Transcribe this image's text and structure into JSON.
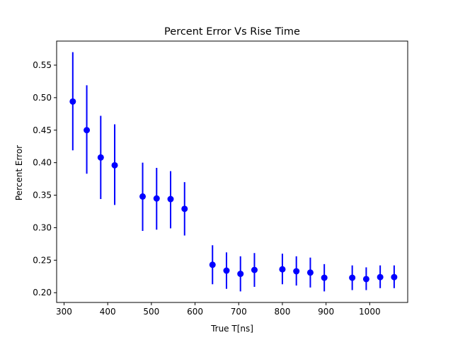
{
  "chart_data": {
    "type": "scatter",
    "title": "Percent Error Vs Rise Time",
    "xlabel": "True T[ns]",
    "ylabel": "Percent Error",
    "xlim": [
      283,
      1087
    ],
    "ylim": [
      0.185,
      0.587
    ],
    "xticks": [
      300,
      400,
      500,
      600,
      700,
      800,
      900,
      1000
    ],
    "yticks": [
      0.2,
      0.25,
      0.3,
      0.35,
      0.4,
      0.45,
      0.5,
      0.55
    ],
    "xtick_labels": [
      "300",
      "400",
      "500",
      "600",
      "700",
      "800",
      "900",
      "1000"
    ],
    "ytick_labels": [
      "0.20",
      "0.25",
      "0.30",
      "0.35",
      "0.40",
      "0.45",
      "0.50",
      "0.55"
    ],
    "grid": false,
    "legend": "none",
    "series": [
      {
        "color": "#0000ff",
        "marker": "circle",
        "x": [
          320,
          352,
          384,
          416,
          480,
          512,
          544,
          576,
          640,
          672,
          704,
          736,
          800,
          832,
          864,
          896,
          960,
          992,
          1024,
          1056
        ],
        "y": [
          0.494,
          0.45,
          0.408,
          0.396,
          0.348,
          0.345,
          0.344,
          0.329,
          0.243,
          0.234,
          0.229,
          0.235,
          0.236,
          0.233,
          0.231,
          0.223,
          0.223,
          0.221,
          0.224,
          0.224
        ],
        "yerr_low": [
          0.419,
          0.383,
          0.344,
          0.335,
          0.295,
          0.297,
          0.299,
          0.288,
          0.213,
          0.206,
          0.202,
          0.209,
          0.213,
          0.211,
          0.208,
          0.202,
          0.204,
          0.204,
          0.207,
          0.207
        ],
        "yerr_high": [
          0.57,
          0.519,
          0.472,
          0.459,
          0.4,
          0.392,
          0.387,
          0.37,
          0.273,
          0.262,
          0.256,
          0.261,
          0.26,
          0.256,
          0.254,
          0.244,
          0.242,
          0.239,
          0.242,
          0.242
        ]
      }
    ]
  }
}
